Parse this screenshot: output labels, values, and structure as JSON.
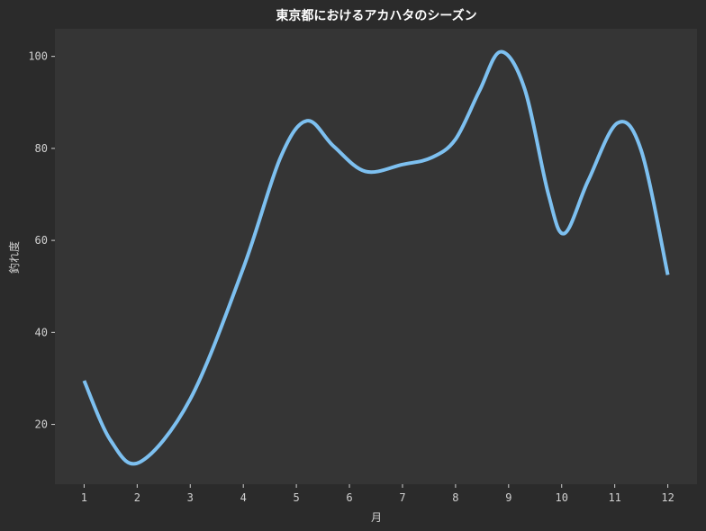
{
  "chart_data": {
    "type": "line",
    "title": "東京都におけるアカハタのシーズン",
    "xlabel": "月",
    "ylabel": "釣れ度",
    "x": [
      1,
      2,
      3,
      4,
      5,
      6,
      7,
      8,
      9,
      10,
      11,
      12
    ],
    "x_tick_labels": [
      "1",
      "2",
      "3",
      "4",
      "5",
      "6",
      "7",
      "8",
      "9",
      "10",
      "11",
      "12"
    ],
    "y_ticks": [
      20,
      40,
      60,
      80,
      100
    ],
    "y_tick_labels": [
      "20",
      "40",
      "60",
      "80",
      "100"
    ],
    "xlim": [
      0.45,
      12.55
    ],
    "ylim": [
      7,
      106
    ],
    "grid": false,
    "series": [
      {
        "color": "#7dc0f0",
        "smooth": true,
        "points": [
          {
            "x": 1.0,
            "y": 29.5
          },
          {
            "x": 1.5,
            "y": 16.5
          },
          {
            "x": 2.05,
            "y": 11.8
          },
          {
            "x": 3.0,
            "y": 25.5
          },
          {
            "x": 4.0,
            "y": 54.0
          },
          {
            "x": 4.7,
            "y": 78.0
          },
          {
            "x": 5.2,
            "y": 86.0
          },
          {
            "x": 5.7,
            "y": 80.5
          },
          {
            "x": 6.3,
            "y": 75.0
          },
          {
            "x": 7.0,
            "y": 76.5
          },
          {
            "x": 7.55,
            "y": 78.0
          },
          {
            "x": 8.0,
            "y": 82.0
          },
          {
            "x": 8.45,
            "y": 92.5
          },
          {
            "x": 8.85,
            "y": 101.0
          },
          {
            "x": 9.3,
            "y": 93.0
          },
          {
            "x": 9.75,
            "y": 70.0
          },
          {
            "x": 10.05,
            "y": 61.5
          },
          {
            "x": 10.5,
            "y": 73.0
          },
          {
            "x": 11.05,
            "y": 85.5
          },
          {
            "x": 11.5,
            "y": 79.5
          },
          {
            "x": 12.0,
            "y": 52.5
          }
        ]
      }
    ]
  },
  "colors": {
    "page_background": "#2b2b2b",
    "plot_background": "#353535",
    "line": "#7dc0f0",
    "text": "#d0d0d0",
    "title": "#ffffff"
  }
}
